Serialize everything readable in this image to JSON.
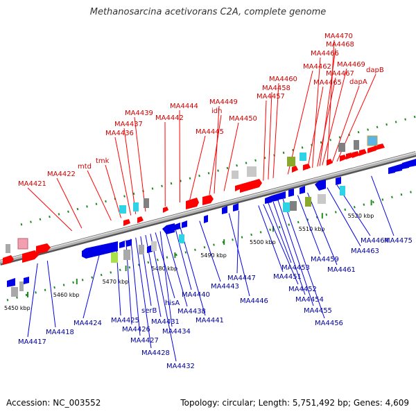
{
  "title": "Methanosarcina acetivorans C2A, complete genome",
  "footer": {
    "accession": "Accession: NC_003552",
    "stats": "Topology: circular; Length: 5,751,492 bp; Genes: 4,609"
  },
  "colors": {
    "forward": "#ff0000",
    "reverse": "#0000e6",
    "backbone": "#9a9a9a",
    "tick": "#1f8a1f"
  },
  "ticks": [
    {
      "label": "5450 kbp",
      "pos": 5450
    },
    {
      "label": "5460 kbp",
      "pos": 5460
    },
    {
      "label": "5470 kbp",
      "pos": 5470
    },
    {
      "label": "5480 kbp",
      "pos": 5480
    },
    {
      "label": "5490 kbp",
      "pos": 5490
    },
    {
      "label": "5500 kbp",
      "pos": 5500
    },
    {
      "label": "5510 kbp",
      "pos": 5510
    },
    {
      "label": "5520 kbp",
      "pos": 5520
    }
  ],
  "genes_top": [
    {
      "label": "MA4421",
      "pos": 5459
    },
    {
      "label": "MA4422",
      "pos": 5461
    },
    {
      "label": "mtd",
      "pos": 5467
    },
    {
      "label": "tmk",
      "pos": 5469
    },
    {
      "label": "MA4436",
      "pos": 5471
    },
    {
      "label": "MA4437",
      "pos": 5472
    },
    {
      "label": "MA4439",
      "pos": 5474
    },
    {
      "label": "MA4442",
      "pos": 5478
    },
    {
      "label": "MA4444",
      "pos": 5481
    },
    {
      "label": "MA4445",
      "pos": 5483
    },
    {
      "label": "idh",
      "pos": 5487
    },
    {
      "label": "MA4449",
      "pos": 5488
    },
    {
      "label": "MA4450",
      "pos": 5490
    },
    {
      "label": "MA4457",
      "pos": 5498
    },
    {
      "label": "MA4458",
      "pos": 5499
    },
    {
      "label": "MA4460",
      "pos": 5500
    },
    {
      "label": "MA4462",
      "pos": 5503
    },
    {
      "label": "MA4465",
      "pos": 5507
    },
    {
      "label": "MA4466",
      "pos": 5508
    },
    {
      "label": "MA4467",
      "pos": 5509
    },
    {
      "label": "MA4468",
      "pos": 5509.5
    },
    {
      "label": "MA4469",
      "pos": 5510
    },
    {
      "label": "MA4470",
      "pos": 5511
    },
    {
      "label": "dapA",
      "pos": 5512
    },
    {
      "label": "dapB",
      "pos": 5513
    }
  ],
  "genes_bottom": [
    {
      "label": "MA4417",
      "pos": 5452
    },
    {
      "label": "MA4418",
      "pos": 5454
    },
    {
      "label": "MA4424",
      "pos": 5465
    },
    {
      "label": "MA4425",
      "pos": 5468
    },
    {
      "label": "MA4426",
      "pos": 5470
    },
    {
      "label": "MA4427",
      "pos": 5471
    },
    {
      "label": "MA4428",
      "pos": 5472
    },
    {
      "label": "serB",
      "pos": 5473
    },
    {
      "label": "MA4431",
      "pos": 5474
    },
    {
      "label": "MA4432",
      "pos": 5475
    },
    {
      "label": "hisA",
      "pos": 5476
    },
    {
      "label": "MA4434",
      "pos": 5477
    },
    {
      "label": "MA4438",
      "pos": 5478
    },
    {
      "label": "MA4440",
      "pos": 5480
    },
    {
      "label": "MA4441",
      "pos": 5481
    },
    {
      "label": "MA4443",
      "pos": 5485
    },
    {
      "label": "MA4446",
      "pos": 5491
    },
    {
      "label": "MA4447",
      "pos": 5493
    },
    {
      "label": "MA4451",
      "pos": 5497
    },
    {
      "label": "MA4452",
      "pos": 5498
    },
    {
      "label": "MA4453",
      "pos": 5499
    },
    {
      "label": "MA4454",
      "pos": 5500
    },
    {
      "label": "MA4455",
      "pos": 5501
    },
    {
      "label": "MA4456",
      "pos": 5502
    },
    {
      "label": "MA4459",
      "pos": 5505
    },
    {
      "label": "MA4461",
      "pos": 5507
    },
    {
      "label": "MA4463",
      "pos": 5511
    },
    {
      "label": "MA4464",
      "pos": 5513
    },
    {
      "label": "MA4475",
      "pos": 5520
    }
  ]
}
